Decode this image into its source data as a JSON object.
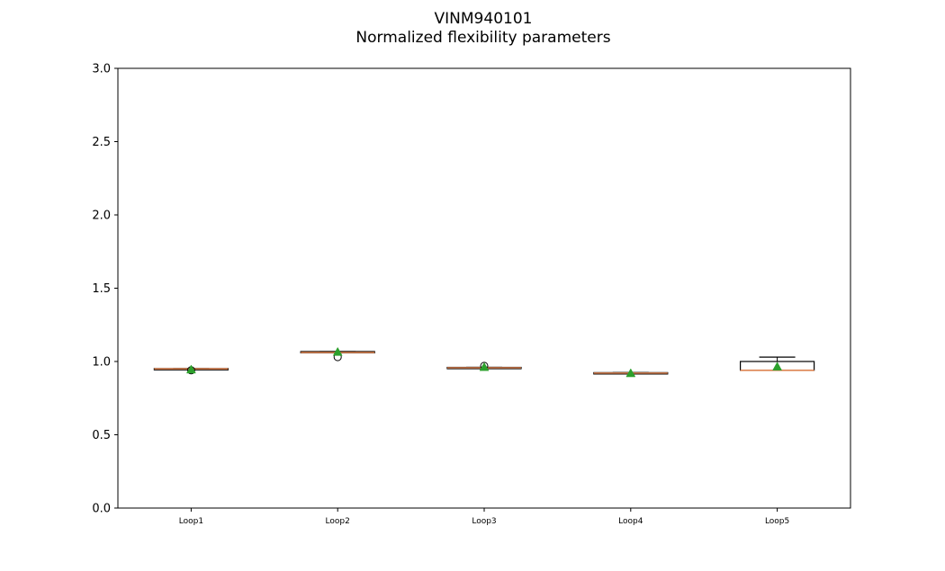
{
  "title": {
    "line1": "VINM940101",
    "line2": "Normalized flexibility parameters"
  },
  "colors": {
    "median": "#dd8452",
    "mean": "#2ca02c",
    "box": "#000000"
  },
  "chart_data": {
    "type": "box",
    "title": "VINM940101\nNormalized flexibility parameters",
    "xlabel": "",
    "ylabel": "",
    "ylim": [
      0,
      3
    ],
    "yticks": [
      0.0,
      0.5,
      1.0,
      1.5,
      2.0,
      2.5,
      3.0
    ],
    "ytick_labels": [
      "0.0",
      "0.5",
      "1.0",
      "1.5",
      "2.0",
      "2.5",
      "3.0"
    ],
    "grid": false,
    "categories": [
      "Loop1",
      "Loop2",
      "Loop3",
      "Loop4",
      "Loop5"
    ],
    "boxes": [
      {
        "name": "Loop1",
        "whisker_low": 0.948,
        "q1": 0.948,
        "median": 0.95,
        "q3": 0.952,
        "whisker_high": 0.952,
        "mean": 0.945,
        "outliers": [
          0.94
        ]
      },
      {
        "name": "Loop2",
        "whisker_low": 1.06,
        "q1": 1.06,
        "median": 1.062,
        "q3": 1.068,
        "whisker_high": 1.068,
        "mean": 1.065,
        "outliers": [
          1.03
        ]
      },
      {
        "name": "Loop3",
        "whisker_low": 0.955,
        "q1": 0.955,
        "median": 0.957,
        "q3": 0.96,
        "whisker_high": 0.96,
        "mean": 0.962,
        "outliers": [
          0.97
        ]
      },
      {
        "name": "Loop4",
        "whisker_low": 0.92,
        "q1": 0.92,
        "median": 0.921,
        "q3": 0.924,
        "whisker_high": 0.924,
        "mean": 0.92,
        "outliers": []
      },
      {
        "name": "Loop5",
        "whisker_low": 0.94,
        "q1": 0.94,
        "median": 0.94,
        "q3": 1.0,
        "whisker_high": 1.03,
        "mean": 0.965,
        "outliers": []
      }
    ]
  }
}
